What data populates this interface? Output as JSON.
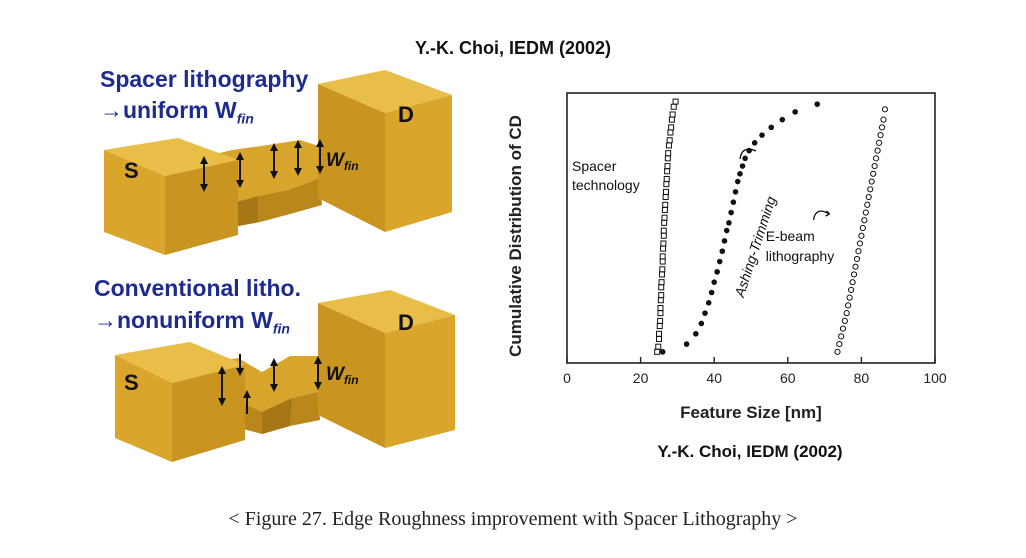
{
  "citation_top": "Y.-K. Choi, IEDM (2002)",
  "left_panel": {
    "top_title_line1": "Spacer lithography",
    "top_title_line2": "→uniform W",
    "top_title_sub": "fin",
    "bottom_title_line1": "Conventional litho.",
    "bottom_title_line2": "→nonuniform W",
    "bottom_title_sub": "fin",
    "source_label": "S",
    "drain_label": "D",
    "wfin_label": "W",
    "wfin_sub": "fin",
    "colors": {
      "block_front": "#d9a52a",
      "block_top": "#e8be48",
      "block_side": "#b9871a",
      "title_blue": "#1e2b8e"
    }
  },
  "chart_data": {
    "type": "scatter",
    "xlabel": "Feature Size [nm]",
    "ylabel": "Cumulative Distribution of CD",
    "xlim": [
      0,
      100
    ],
    "x_ticks": [
      0,
      20,
      40,
      60,
      80,
      100
    ],
    "x_tick_labels": [
      "0",
      "20",
      "40",
      "60",
      "80",
      "100"
    ],
    "grid": false,
    "series": [
      {
        "name": "Spacer technology",
        "marker": "open-square",
        "x": [
          24.5,
          24.8,
          25.0,
          25.0,
          25.2,
          25.3,
          25.4,
          25.4,
          25.5,
          25.6,
          25.6,
          25.7,
          25.8,
          25.9,
          26.0,
          26.0,
          26.1,
          26.2,
          26.3,
          26.3,
          26.4,
          26.5,
          26.6,
          26.7,
          26.8,
          26.9,
          27.0,
          27.1,
          27.2,
          27.3,
          27.4,
          27.5,
          27.7,
          27.9,
          28.1,
          28.3,
          28.5,
          28.7,
          29.0,
          29.5
        ],
        "y": [
          0.02,
          0.04,
          0.07,
          0.09,
          0.12,
          0.14,
          0.17,
          0.19,
          0.22,
          0.24,
          0.27,
          0.29,
          0.32,
          0.34,
          0.37,
          0.39,
          0.42,
          0.44,
          0.47,
          0.49,
          0.52,
          0.54,
          0.57,
          0.59,
          0.62,
          0.64,
          0.67,
          0.69,
          0.72,
          0.74,
          0.77,
          0.79,
          0.82,
          0.84,
          0.87,
          0.89,
          0.92,
          0.94,
          0.97,
          0.99
        ]
      },
      {
        "name": "Ashing-Trimming",
        "marker": "filled-circle",
        "x": [
          26.0,
          32.5,
          35.0,
          36.5,
          37.5,
          38.5,
          39.3,
          40.0,
          40.8,
          41.5,
          42.2,
          42.8,
          43.4,
          44.0,
          44.6,
          45.2,
          45.8,
          46.4,
          47.0,
          47.7,
          48.4,
          49.5,
          51.0,
          53.0,
          55.5,
          58.5,
          62.0,
          68.0
        ],
        "y": [
          0.02,
          0.05,
          0.09,
          0.13,
          0.17,
          0.21,
          0.25,
          0.29,
          0.33,
          0.37,
          0.41,
          0.45,
          0.49,
          0.52,
          0.56,
          0.6,
          0.64,
          0.68,
          0.71,
          0.74,
          0.77,
          0.8,
          0.83,
          0.86,
          0.89,
          0.92,
          0.95,
          0.98
        ]
      },
      {
        "name": "E-beam lithography",
        "marker": "open-circle",
        "x": [
          73.5,
          74.0,
          74.5,
          75.0,
          75.5,
          76.0,
          76.4,
          76.8,
          77.2,
          77.6,
          78.0,
          78.4,
          78.8,
          79.2,
          79.6,
          80.0,
          80.4,
          80.8,
          81.2,
          81.6,
          82.0,
          82.4,
          82.8,
          83.2,
          83.6,
          84.0,
          84.4,
          84.8,
          85.2,
          85.6,
          86.0,
          86.4
        ],
        "y": [
          0.02,
          0.05,
          0.08,
          0.11,
          0.14,
          0.17,
          0.2,
          0.23,
          0.26,
          0.29,
          0.32,
          0.35,
          0.38,
          0.41,
          0.44,
          0.47,
          0.5,
          0.53,
          0.56,
          0.59,
          0.62,
          0.65,
          0.68,
          0.71,
          0.74,
          0.77,
          0.8,
          0.83,
          0.86,
          0.89,
          0.92,
          0.96
        ]
      }
    ],
    "annotations": {
      "spacer_line1": "Spacer",
      "spacer_line2": "technology",
      "ashing": "Ashing-Trimming",
      "ebeam_line1": "E-beam",
      "ebeam_line2": "lithography"
    }
  },
  "chart_citation": "Y.-K. Choi, IEDM (2002)",
  "caption": "< Figure 27. Edge Roughness improvement with Spacer Lithography >"
}
